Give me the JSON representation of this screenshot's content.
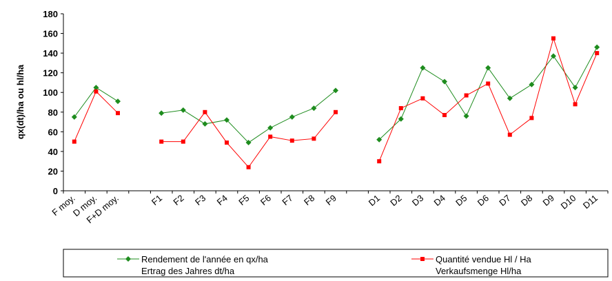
{
  "chart_data": {
    "type": "line",
    "ylabel": "qx(dt)/ha ou hl/ha",
    "categories": [
      "F moy.",
      "D moy.",
      "F+D moy.",
      null,
      "F1",
      "F2",
      "F3",
      "F4",
      "F5",
      "F6",
      "F7",
      "F8",
      "F9",
      null,
      "D1",
      "D2",
      "D3",
      "D4",
      "D5",
      "D6",
      "D7",
      "D8",
      "D9",
      "D10",
      "D11"
    ],
    "series": [
      {
        "name": [
          "Rendement de l'année en qx/ha",
          "Ertrag des Jahres dt/ha"
        ],
        "color": "#1e8c1e",
        "marker": "diamond",
        "values": [
          75,
          105,
          91,
          null,
          79,
          82,
          68,
          72,
          49,
          64,
          75,
          84,
          102,
          null,
          52,
          73,
          125,
          111,
          76,
          125,
          94,
          108,
          137,
          105,
          146
        ]
      },
      {
        "name": [
          "Quantité vendue Hl / Ha",
          "Verkaufsmenge Hl/ha"
        ],
        "color": "#ff0000",
        "marker": "square",
        "values": [
          50,
          101,
          79,
          null,
          50,
          50,
          80,
          49,
          24,
          55,
          51,
          53,
          80,
          null,
          30,
          84,
          94,
          77,
          97,
          109,
          57,
          74,
          155,
          88,
          140
        ]
      }
    ],
    "ylim": [
      0,
      180
    ],
    "yticks": [
      0,
      20,
      40,
      60,
      80,
      100,
      120,
      140,
      160,
      180
    ],
    "grid": false
  }
}
